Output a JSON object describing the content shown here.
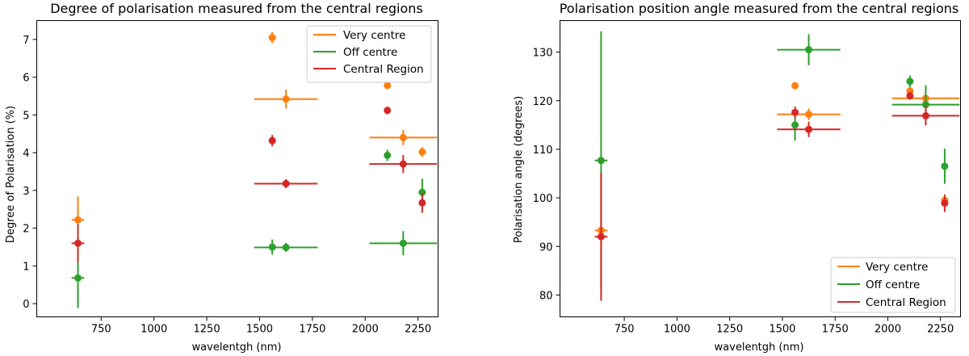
{
  "colors": {
    "very_centre": "#ff7f0e",
    "off_centre": "#2ca02c",
    "central_region": "#d62728"
  },
  "chart_data": [
    {
      "type": "scatter",
      "title": "Degree of polarisation measured from the central regions",
      "xlabel": "wavelentgh (nm)",
      "ylabel": "Degree of Polarisation (%)",
      "xlim": [
        445,
        2345
      ],
      "ylim": [
        -0.35,
        7.5
      ],
      "xticks": [
        750,
        1000,
        1250,
        1500,
        1750,
        2000,
        2250
      ],
      "xtick_labels": [
        "750",
        "1000",
        "1250",
        "1500",
        "1750",
        "2000",
        "2250"
      ],
      "yticks": [
        0,
        1,
        2,
        3,
        4,
        5,
        6,
        7
      ],
      "ytick_labels": [
        "0",
        "1",
        "2",
        "3",
        "4",
        "5",
        "6",
        "7"
      ],
      "legend": {
        "placement": "top-right",
        "entries": [
          "Very centre",
          "Off centre",
          "Central Region"
        ]
      },
      "series": [
        {
          "name": "Very centre",
          "color_key": "very_centre",
          "points": [
            {
              "x": 640,
              "y": 2.22,
              "xerr": 30,
              "yerr": 0.62
            },
            {
              "x": 1560,
              "y": 7.05,
              "xerr": 0,
              "yerr": 0.15
            },
            {
              "x": 1625,
              "y": 5.42,
              "xerr": 150,
              "yerr": 0.25
            },
            {
              "x": 2105,
              "y": 5.78,
              "xerr": 0,
              "yerr": 0.08
            },
            {
              "x": 2180,
              "y": 4.4,
              "xerr": 160,
              "yerr": 0.2
            },
            {
              "x": 2270,
              "y": 4.02,
              "xerr": 0,
              "yerr": 0.13
            }
          ]
        },
        {
          "name": "Off centre",
          "color_key": "off_centre",
          "points": [
            {
              "x": 640,
              "y": 0.68,
              "xerr": 30,
              "yerr": 0.8
            },
            {
              "x": 1560,
              "y": 1.5,
              "xerr": 0,
              "yerr": 0.2
            },
            {
              "x": 1625,
              "y": 1.49,
              "xerr": 150,
              "yerr": 0.12
            },
            {
              "x": 2105,
              "y": 3.93,
              "xerr": 0,
              "yerr": 0.15
            },
            {
              "x": 2180,
              "y": 1.6,
              "xerr": 160,
              "yerr": 0.32
            },
            {
              "x": 2270,
              "y": 2.95,
              "xerr": 0,
              "yerr": 0.36
            }
          ]
        },
        {
          "name": "Central Region",
          "color_key": "central_region",
          "points": [
            {
              "x": 640,
              "y": 1.6,
              "xerr": 30,
              "yerr": 0.5
            },
            {
              "x": 1560,
              "y": 4.32,
              "xerr": 0,
              "yerr": 0.15
            },
            {
              "x": 1625,
              "y": 3.18,
              "xerr": 150,
              "yerr": 0.12
            },
            {
              "x": 2105,
              "y": 5.12,
              "xerr": 0,
              "yerr": 0.1
            },
            {
              "x": 2180,
              "y": 3.7,
              "xerr": 160,
              "yerr": 0.24
            },
            {
              "x": 2270,
              "y": 2.67,
              "xerr": 0,
              "yerr": 0.26
            }
          ]
        }
      ]
    },
    {
      "type": "scatter",
      "title": "Polarisation position angle measured from the central regions",
      "xlabel": "wavelentgh (nm)",
      "ylabel": "Polarisation angle (degrees)",
      "xlim": [
        445,
        2345
      ],
      "ylim": [
        75.5,
        136.5
      ],
      "xticks": [
        750,
        1000,
        1250,
        1500,
        1750,
        2000,
        2250
      ],
      "xtick_labels": [
        "750",
        "1000",
        "1250",
        "1500",
        "1750",
        "2000",
        "2250"
      ],
      "yticks": [
        80,
        90,
        100,
        110,
        120,
        130
      ],
      "ytick_labels": [
        "80",
        "90",
        "100",
        "110",
        "120",
        "130"
      ],
      "legend": {
        "placement": "bottom-right",
        "entries": [
          "Very centre",
          "Off centre",
          "Central Region"
        ]
      },
      "series": [
        {
          "name": "Very centre",
          "color_key": "very_centre",
          "points": [
            {
              "x": 640,
              "y": 93.3,
              "xerr": 30,
              "yerr": 0.8
            },
            {
              "x": 1560,
              "y": 123.1,
              "xerr": 0,
              "yerr": 0.5
            },
            {
              "x": 1625,
              "y": 117.2,
              "xerr": 150,
              "yerr": 1.2
            },
            {
              "x": 2105,
              "y": 122.0,
              "xerr": 0,
              "yerr": 0.8
            },
            {
              "x": 2180,
              "y": 120.5,
              "xerr": 160,
              "yerr": 0.8
            },
            {
              "x": 2270,
              "y": 99.5,
              "xerr": 0,
              "yerr": 0.8
            }
          ]
        },
        {
          "name": "Off centre",
          "color_key": "off_centre",
          "points": [
            {
              "x": 640,
              "y": 107.7,
              "xerr": 30,
              "yerr": 26.6
            },
            {
              "x": 1560,
              "y": 115.0,
              "xerr": 0,
              "yerr": 3.2
            },
            {
              "x": 1625,
              "y": 130.5,
              "xerr": 150,
              "yerr": 3.2
            },
            {
              "x": 2105,
              "y": 124.0,
              "xerr": 0,
              "yerr": 1.2
            },
            {
              "x": 2180,
              "y": 119.2,
              "xerr": 160,
              "yerr": 4.0
            },
            {
              "x": 2270,
              "y": 106.5,
              "xerr": 0,
              "yerr": 3.6
            }
          ]
        },
        {
          "name": "Central Region",
          "color_key": "central_region",
          "points": [
            {
              "x": 640,
              "y": 92.0,
              "xerr": 30,
              "yerr": 13.2
            },
            {
              "x": 1560,
              "y": 117.6,
              "xerr": 0,
              "yerr": 1.2
            },
            {
              "x": 1625,
              "y": 114.1,
              "xerr": 150,
              "yerr": 1.6
            },
            {
              "x": 2105,
              "y": 121.0,
              "xerr": 0,
              "yerr": 0.8
            },
            {
              "x": 2180,
              "y": 116.9,
              "xerr": 160,
              "yerr": 2.0
            },
            {
              "x": 2270,
              "y": 98.9,
              "xerr": 0,
              "yerr": 1.8
            }
          ]
        }
      ]
    }
  ]
}
